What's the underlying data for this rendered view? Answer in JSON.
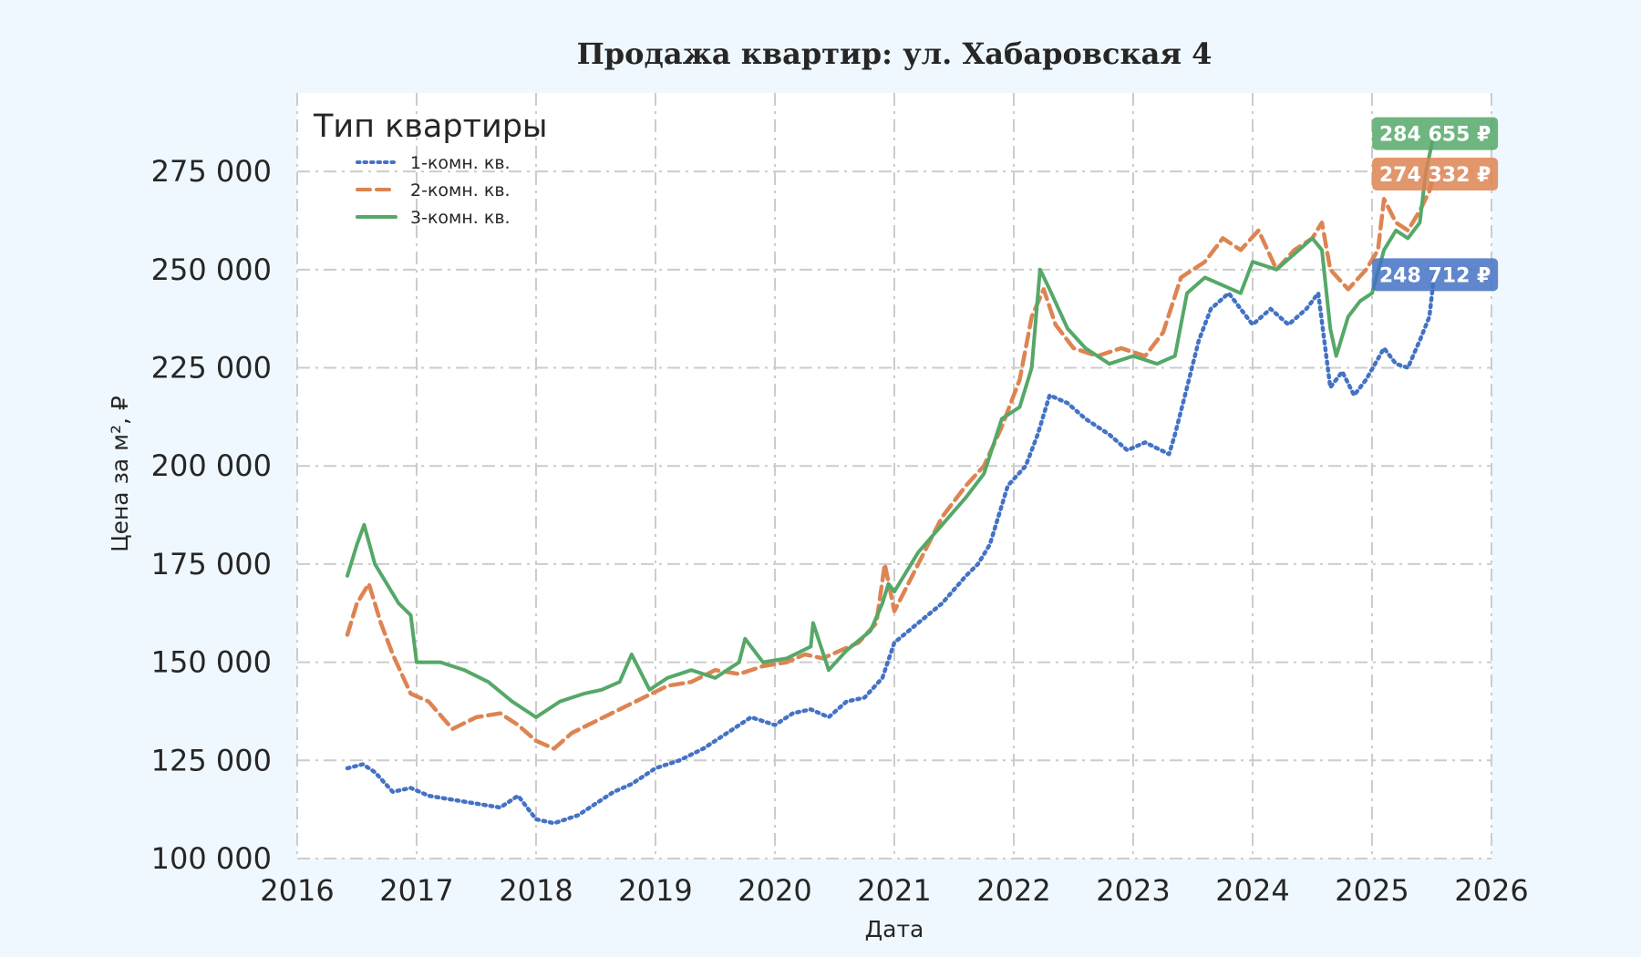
{
  "chart_data": {
    "type": "line",
    "title": "Продажа квартир: ул. Хабаровская 4",
    "xlabel": "Дата",
    "ylabel": "Цена за м², ₽",
    "xlim": [
      2016,
      2026
    ],
    "ylim": [
      100000,
      295000
    ],
    "x_ticks": [
      "2016",
      "2017",
      "2018",
      "2019",
      "2020",
      "2021",
      "2022",
      "2023",
      "2024",
      "2025",
      "2026"
    ],
    "y_ticks": [
      "100 000",
      "125 000",
      "150 000",
      "175 000",
      "200 000",
      "225 000",
      "250 000",
      "275 000"
    ],
    "grid": true,
    "legend": {
      "title": "Тип квартиры",
      "placement": "top-left"
    },
    "series": [
      {
        "name": "1-комн. кв.",
        "color": "#4472c4",
        "style": "dotted",
        "end_label": "248 712 ₽",
        "x": [
          2016.42,
          2016.55,
          2016.65,
          2016.8,
          2016.95,
          2017.1,
          2017.3,
          2017.5,
          2017.7,
          2017.85,
          2018.0,
          2018.15,
          2018.35,
          2018.5,
          2018.65,
          2018.8,
          2019.0,
          2019.2,
          2019.4,
          2019.6,
          2019.8,
          2020.0,
          2020.15,
          2020.3,
          2020.45,
          2020.6,
          2020.75,
          2020.9,
          2021.0,
          2021.2,
          2021.4,
          2021.6,
          2021.7,
          2021.8,
          2021.95,
          2022.1,
          2022.2,
          2022.3,
          2022.45,
          2022.6,
          2022.8,
          2022.95,
          2023.1,
          2023.3,
          2023.35,
          2023.45,
          2023.55,
          2023.65,
          2023.8,
          2024.0,
          2024.15,
          2024.3,
          2024.45,
          2024.55,
          2024.65,
          2024.75,
          2024.85,
          2024.95,
          2025.1,
          2025.2,
          2025.3,
          2025.4,
          2025.48,
          2025.52
        ],
        "values": [
          123000,
          124000,
          122000,
          117000,
          118000,
          116000,
          115000,
          114000,
          113000,
          116000,
          110000,
          109000,
          111000,
          114000,
          117000,
          119000,
          123000,
          125000,
          128000,
          132000,
          136000,
          134000,
          137000,
          138000,
          136000,
          140000,
          141000,
          146000,
          155000,
          160000,
          165000,
          172000,
          175000,
          180000,
          195000,
          200000,
          208000,
          218000,
          216000,
          212000,
          208000,
          204000,
          206000,
          203000,
          208000,
          220000,
          232000,
          240000,
          244000,
          236000,
          240000,
          236000,
          240000,
          244000,
          220000,
          224000,
          218000,
          222000,
          230000,
          226000,
          225000,
          232000,
          238000,
          248712
        ]
      },
      {
        "name": "2-комн. кв.",
        "color": "#dd8452",
        "style": "dashed",
        "end_label": "274 332 ₽",
        "x": [
          2016.42,
          2016.5,
          2016.6,
          2016.7,
          2016.8,
          2016.95,
          2017.1,
          2017.3,
          2017.5,
          2017.7,
          2017.85,
          2018.0,
          2018.15,
          2018.3,
          2018.5,
          2018.7,
          2018.9,
          2019.1,
          2019.3,
          2019.5,
          2019.7,
          2019.9,
          2020.1,
          2020.25,
          2020.4,
          2020.55,
          2020.7,
          2020.85,
          2020.92,
          2021.0,
          2021.2,
          2021.4,
          2021.6,
          2021.75,
          2021.9,
          2022.05,
          2022.15,
          2022.25,
          2022.35,
          2022.5,
          2022.7,
          2022.9,
          2023.1,
          2023.25,
          2023.4,
          2023.6,
          2023.75,
          2023.9,
          2024.05,
          2024.2,
          2024.35,
          2024.5,
          2024.58,
          2024.65,
          2024.8,
          2024.95,
          2025.05,
          2025.1,
          2025.2,
          2025.3,
          2025.4,
          2025.48,
          2025.52
        ],
        "values": [
          157000,
          165000,
          170000,
          160000,
          152000,
          142000,
          140000,
          133000,
          136000,
          137000,
          134000,
          130000,
          128000,
          132000,
          135000,
          138000,
          141000,
          144000,
          145000,
          148000,
          147000,
          149000,
          150000,
          152000,
          151000,
          153000,
          155000,
          160000,
          175000,
          163000,
          175000,
          187000,
          195000,
          200000,
          210000,
          222000,
          238000,
          245000,
          236000,
          230000,
          228000,
          230000,
          228000,
          234000,
          248000,
          252000,
          258000,
          255000,
          260000,
          250000,
          255000,
          258000,
          262000,
          250000,
          245000,
          250000,
          255000,
          268000,
          262000,
          260000,
          265000,
          270000,
          274332
        ]
      },
      {
        "name": "3-комн. кв.",
        "color": "#55a868",
        "style": "solid",
        "end_label": "284 655 ₽",
        "x": [
          2016.42,
          2016.5,
          2016.56,
          2016.65,
          2016.75,
          2016.85,
          2016.95,
          2017.0,
          2017.2,
          2017.4,
          2017.6,
          2017.8,
          2018.0,
          2018.2,
          2018.4,
          2018.55,
          2018.7,
          2018.8,
          2018.95,
          2019.1,
          2019.3,
          2019.5,
          2019.7,
          2019.75,
          2019.9,
          2020.1,
          2020.3,
          2020.32,
          2020.45,
          2020.6,
          2020.8,
          2020.9,
          2020.95,
          2021.0,
          2021.2,
          2021.4,
          2021.6,
          2021.75,
          2021.9,
          2022.05,
          2022.15,
          2022.22,
          2022.3,
          2022.45,
          2022.6,
          2022.8,
          2023.0,
          2023.2,
          2023.35,
          2023.45,
          2023.6,
          2023.75,
          2023.9,
          2024.0,
          2024.2,
          2024.35,
          2024.5,
          2024.58,
          2024.65,
          2024.7,
          2024.8,
          2024.9,
          2025.0,
          2025.1,
          2025.2,
          2025.3,
          2025.4,
          2025.45,
          2025.52
        ],
        "values": [
          172000,
          180000,
          185000,
          175000,
          170000,
          165000,
          162000,
          150000,
          150000,
          148000,
          145000,
          140000,
          136000,
          140000,
          142000,
          143000,
          145000,
          152000,
          143000,
          146000,
          148000,
          146000,
          150000,
          156000,
          150000,
          151000,
          154000,
          160000,
          148000,
          153000,
          158000,
          165000,
          170000,
          168000,
          178000,
          185000,
          192000,
          198000,
          212000,
          215000,
          225000,
          250000,
          245000,
          235000,
          230000,
          226000,
          228000,
          226000,
          228000,
          244000,
          248000,
          246000,
          244000,
          252000,
          250000,
          254000,
          258000,
          255000,
          235000,
          228000,
          238000,
          242000,
          244000,
          255000,
          260000,
          258000,
          262000,
          275000,
          284655
        ]
      }
    ]
  }
}
